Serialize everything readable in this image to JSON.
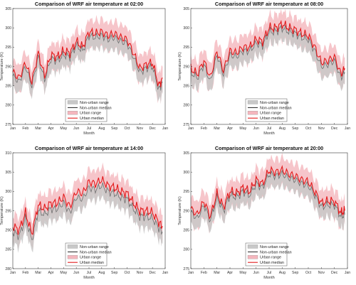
{
  "colors": {
    "nonurban_band": "#c8c8c8",
    "nonurban_line": "#707070",
    "urban_band": "#f4b6bd",
    "urban_line": "#e31a1c"
  },
  "chart_data": [
    {
      "type": "line",
      "title": "Comparison of WRF air temperature at 02:00",
      "xlabel": "Month",
      "ylabel": "Temperature (K)",
      "ylim": [
        275,
        305
      ],
      "yticks": [
        275,
        280,
        285,
        290,
        295,
        300,
        305
      ],
      "xticks": [
        "Jan",
        "Feb",
        "Mar",
        "Apr",
        "May",
        "Jun",
        "Jul",
        "Aug",
        "Sep",
        "Oct",
        "Nov",
        "Dec",
        "Jan"
      ],
      "xlim": [
        0,
        12
      ],
      "legend": [
        "Non-urban range",
        "Non-urban median",
        "Urban range",
        "Urban median"
      ],
      "legend_position": "bottom-center",
      "x": [
        0.0,
        0.5,
        1.0,
        1.5,
        2.0,
        2.5,
        3.0,
        3.5,
        4.0,
        4.5,
        5.0,
        5.5,
        6.0,
        6.5,
        7.0,
        7.5,
        8.0,
        8.5,
        9.0,
        9.5,
        10.0,
        10.5,
        11.0,
        11.5,
        11.8
      ],
      "series": [
        {
          "name": "Urban median",
          "values": [
            288.5,
            287.0,
            291.0,
            286.0,
            293.5,
            287.5,
            293.0,
            292.5,
            294.0,
            293.5,
            296.5,
            295.0,
            299.0,
            298.5,
            299.0,
            298.0,
            298.5,
            297.5,
            297.0,
            293.5,
            289.5,
            290.5,
            291.0,
            285.0,
            287.0
          ]
        },
        {
          "name": "Non-urban median",
          "values": [
            287.5,
            286.0,
            290.0,
            285.0,
            292.5,
            286.5,
            292.0,
            291.5,
            293.0,
            292.5,
            295.5,
            294.0,
            298.0,
            297.5,
            298.0,
            297.0,
            297.5,
            296.5,
            296.0,
            292.5,
            288.5,
            289.5,
            290.0,
            284.0,
            286.0
          ]
        }
      ]
    },
    {
      "type": "line",
      "title": "Comparison of WRF air temperature at 08:00",
      "xlabel": "Month",
      "ylabel": "Temperature (K)",
      "ylim": [
        275,
        305
      ],
      "yticks": [
        275,
        280,
        285,
        290,
        295,
        300,
        305
      ],
      "xticks": [
        "Jan",
        "Feb",
        "Mar",
        "Apr",
        "May",
        "Jun",
        "Jul",
        "Aug",
        "Sep",
        "Oct",
        "Nov",
        "Dec",
        "Jan"
      ],
      "xlim": [
        0,
        12
      ],
      "legend": [
        "Non-urban range",
        "Non-urban median",
        "Urban range",
        "Urban median"
      ],
      "legend_position": "bottom-center",
      "x": [
        0.0,
        0.5,
        1.0,
        1.5,
        2.0,
        2.5,
        3.0,
        3.5,
        4.0,
        4.5,
        5.0,
        5.5,
        6.0,
        6.5,
        7.0,
        7.5,
        8.0,
        8.5,
        9.0,
        9.5,
        10.0,
        10.5,
        11.0,
        11.5,
        11.8
      ],
      "series": [
        {
          "name": "Urban median",
          "values": [
            289.5,
            288.0,
            291.5,
            287.0,
            294.0,
            289.0,
            294.0,
            293.5,
            295.0,
            295.0,
            297.0,
            296.5,
            300.0,
            300.0,
            301.0,
            300.0,
            299.5,
            298.5,
            298.0,
            295.0,
            291.0,
            291.5,
            292.5,
            288.0,
            289.5
          ]
        },
        {
          "name": "Non-urban median",
          "values": [
            288.5,
            287.0,
            290.5,
            286.0,
            293.0,
            288.0,
            293.0,
            292.5,
            294.0,
            294.0,
            296.0,
            295.5,
            299.0,
            299.0,
            300.0,
            299.0,
            298.5,
            297.5,
            297.0,
            294.0,
            290.0,
            290.5,
            291.5,
            287.0,
            288.5
          ]
        }
      ]
    },
    {
      "type": "line",
      "title": "Comparison of WRF air temperature at 14:00",
      "xlabel": "Month",
      "ylabel": "Temperature (K)",
      "ylim": [
        280,
        310
      ],
      "yticks": [
        280,
        285,
        290,
        295,
        300,
        305,
        310
      ],
      "xticks": [
        "Jan",
        "Feb",
        "Mar",
        "Apr",
        "May",
        "Jun",
        "Jul",
        "Aug",
        "Sep",
        "Oct",
        "Nov",
        "Dec",
        "Jan"
      ],
      "xlim": [
        0,
        12
      ],
      "legend": [
        "Non-urban range",
        "Non-urban median",
        "Urban range",
        "Urban median"
      ],
      "legend_position": "bottom-center",
      "x": [
        0.0,
        0.5,
        1.0,
        1.5,
        2.0,
        2.5,
        3.0,
        3.5,
        4.0,
        4.5,
        5.0,
        5.5,
        6.0,
        6.5,
        7.0,
        7.5,
        8.0,
        8.5,
        9.0,
        9.5,
        10.0,
        10.5,
        11.0,
        11.5,
        11.8
      ],
      "series": [
        {
          "name": "Urban median",
          "values": [
            291.0,
            290.0,
            294.5,
            289.0,
            296.5,
            295.5,
            297.0,
            297.0,
            298.5,
            296.0,
            300.0,
            299.5,
            302.5,
            302.0,
            303.0,
            301.5,
            301.0,
            300.0,
            299.5,
            297.0,
            295.0,
            295.0,
            294.5,
            292.0,
            291.0
          ]
        },
        {
          "name": "Non-urban median",
          "values": [
            289.5,
            288.5,
            293.0,
            287.5,
            295.0,
            294.0,
            295.5,
            295.5,
            297.0,
            294.5,
            298.5,
            298.0,
            301.0,
            300.5,
            301.5,
            300.0,
            299.5,
            298.5,
            298.0,
            295.5,
            293.5,
            293.5,
            293.0,
            290.5,
            289.5
          ]
        }
      ]
    },
    {
      "type": "line",
      "title": "Comparison of WRF air temperature at 20:00",
      "xlabel": "Month",
      "ylabel": "Temperature (K)",
      "ylim": [
        275,
        305
      ],
      "yticks": [
        275,
        280,
        285,
        290,
        295,
        300,
        305
      ],
      "xticks": [
        "Jan",
        "Feb",
        "Mar",
        "Apr",
        "May",
        "Jun",
        "Jul",
        "Aug",
        "Sep",
        "Oct",
        "Nov",
        "Dec",
        "Jan"
      ],
      "xlim": [
        0,
        12
      ],
      "legend": [
        "Non-urban range",
        "Non-urban median",
        "Urban range",
        "Urban median"
      ],
      "legend_position": "bottom-center",
      "x": [
        0.0,
        0.5,
        1.0,
        1.5,
        2.0,
        2.5,
        3.0,
        3.5,
        4.0,
        4.5,
        5.0,
        5.5,
        6.0,
        6.5,
        7.0,
        7.5,
        8.0,
        8.5,
        9.0,
        9.5,
        10.0,
        10.5,
        11.0,
        11.5,
        11.8
      ],
      "series": [
        {
          "name": "Urban median",
          "values": [
            290.5,
            289.0,
            292.5,
            288.5,
            294.5,
            291.0,
            295.0,
            294.5,
            296.0,
            295.0,
            298.0,
            297.0,
            300.5,
            300.0,
            300.5,
            299.5,
            299.0,
            298.0,
            297.5,
            295.0,
            292.0,
            292.5,
            292.5,
            289.5,
            290.0
          ]
        },
        {
          "name": "Non-urban median",
          "values": [
            289.5,
            288.0,
            291.5,
            287.5,
            293.5,
            290.0,
            294.0,
            293.5,
            295.0,
            294.0,
            297.0,
            296.0,
            299.5,
            299.0,
            299.5,
            298.5,
            298.0,
            297.0,
            296.5,
            294.0,
            291.0,
            291.5,
            291.5,
            288.5,
            289.0
          ]
        }
      ]
    }
  ]
}
